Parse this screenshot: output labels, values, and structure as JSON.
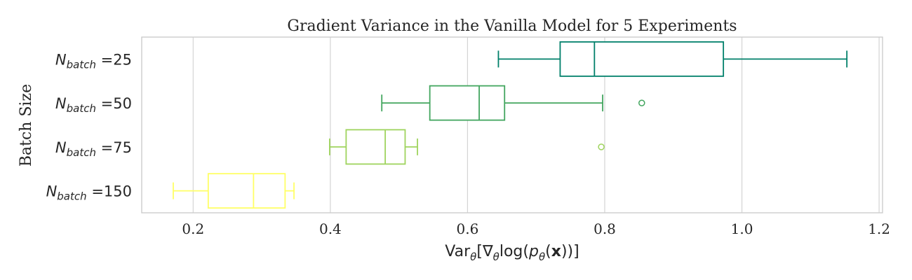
{
  "chart_data": {
    "type": "boxplot",
    "orientation": "horizontal",
    "title": "Gradient Variance in the Vanilla Model for 5 Experiments",
    "ylabel": "Batch Size",
    "xlabel": {
      "prefix": "Var",
      "sub1": "θ",
      "mid": "[∇",
      "sub2": "θ",
      "mid2": "log(",
      "p": "p",
      "sub3": "θ",
      "mid3": "(",
      "bold": "x",
      "end": "))]"
    },
    "xlim": [
      0.125,
      1.205
    ],
    "xticks": [
      "0.2",
      "0.4",
      "0.6",
      "0.8",
      "1.0",
      "1.2"
    ],
    "grid": "vertical",
    "series": [
      {
        "label_main": "N",
        "label_sub": "batch",
        "label_rest": " =25",
        "color": "#00806a",
        "whislo": 0.645,
        "q1": 0.735,
        "med": 0.785,
        "q3": 0.973,
        "whishi": 1.153,
        "fliers": []
      },
      {
        "label_main": "N",
        "label_sub": "batch",
        "label_rest": " =50",
        "color": "#43a65f",
        "whislo": 0.475,
        "q1": 0.545,
        "med": 0.617,
        "q3": 0.654,
        "whishi": 0.797,
        "fliers": [
          0.854
        ]
      },
      {
        "label_main": "N",
        "label_sub": "batch",
        "label_rest": " =75",
        "color": "#9fd45e",
        "whislo": 0.399,
        "q1": 0.423,
        "med": 0.48,
        "q3": 0.509,
        "whishi": 0.527,
        "fliers": [
          0.795
        ]
      },
      {
        "label_main": "N",
        "label_sub": "batch",
        "label_rest": " =150",
        "color": "#ffff66",
        "whislo": 0.171,
        "q1": 0.222,
        "med": 0.288,
        "q3": 0.334,
        "whishi": 0.347,
        "fliers": []
      }
    ]
  }
}
